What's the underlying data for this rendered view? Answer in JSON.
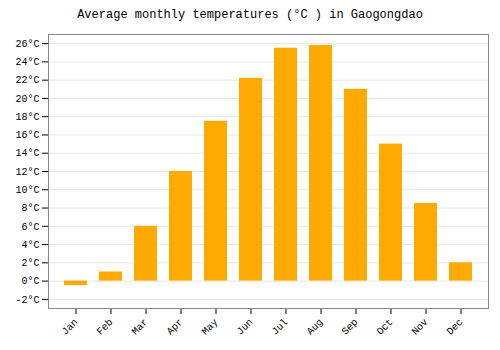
{
  "chart_data": {
    "type": "bar",
    "title": "Average monthly temperatures (°C ) in Gaogongdao",
    "categories": [
      "Jan",
      "Feb",
      "Mar",
      "Apr",
      "May",
      "Jun",
      "Jul",
      "Aug",
      "Sep",
      "Oct",
      "Nov",
      "Dec"
    ],
    "values": [
      -0.5,
      1.0,
      6.0,
      12.0,
      17.5,
      22.2,
      25.5,
      25.8,
      21.0,
      15.0,
      8.5,
      2.0
    ],
    "color": "#FFAA00",
    "ylim": [
      -3,
      27
    ],
    "yticks": [
      {
        "value": -2,
        "label": "-2°C"
      },
      {
        "value": 0,
        "label": "0°C"
      },
      {
        "value": 2,
        "label": "2°C"
      },
      {
        "value": 4,
        "label": "4°C"
      },
      {
        "value": 6,
        "label": "6°C"
      },
      {
        "value": 8,
        "label": "8°C"
      },
      {
        "value": 10,
        "label": "10°C"
      },
      {
        "value": 12,
        "label": "12°C"
      },
      {
        "value": 14,
        "label": "14°C"
      },
      {
        "value": 16,
        "label": "16°C"
      },
      {
        "value": 18,
        "label": "18°C"
      },
      {
        "value": 20,
        "label": "20°C"
      },
      {
        "value": 22,
        "label": "22°C"
      },
      {
        "value": 24,
        "label": "24°C"
      },
      {
        "value": 26,
        "label": "26°C"
      }
    ],
    "grid": true
  }
}
